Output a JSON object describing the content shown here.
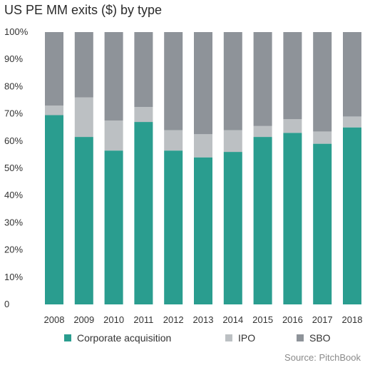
{
  "title": "US PE MM exits ($) by type",
  "source": "Source: PitchBook",
  "colors": {
    "corporate_acquisition": "#2a9d8f",
    "ipo": "#bcc0c3",
    "sbo": "#8e9399"
  },
  "chart_data": {
    "type": "bar",
    "stacked": true,
    "title": "US PE MM exits ($) by type",
    "categories": [
      "2008",
      "2009",
      "2010",
      "2011",
      "2012",
      "2013",
      "2014",
      "2015",
      "2016",
      "2017",
      "2018"
    ],
    "series": [
      {
        "name": "Corporate acquisition",
        "values": [
          69.5,
          61.5,
          56.5,
          67,
          56.5,
          54,
          56,
          61.5,
          63,
          59,
          65
        ]
      },
      {
        "name": "IPO",
        "values": [
          3.5,
          14.5,
          11,
          5.5,
          7.5,
          8.5,
          8,
          4,
          5,
          4.5,
          4
        ]
      },
      {
        "name": "SBO",
        "values": [
          27,
          24,
          32.5,
          27.5,
          36,
          37.5,
          36,
          34.5,
          32,
          36.5,
          31
        ]
      }
    ],
    "ylim": [
      0,
      100
    ],
    "yticks": [
      "0",
      "10%",
      "20%",
      "30%",
      "40%",
      "50%",
      "60%",
      "70%",
      "80%",
      "90%",
      "100%"
    ],
    "legend_position": "bottom",
    "grid": false
  }
}
